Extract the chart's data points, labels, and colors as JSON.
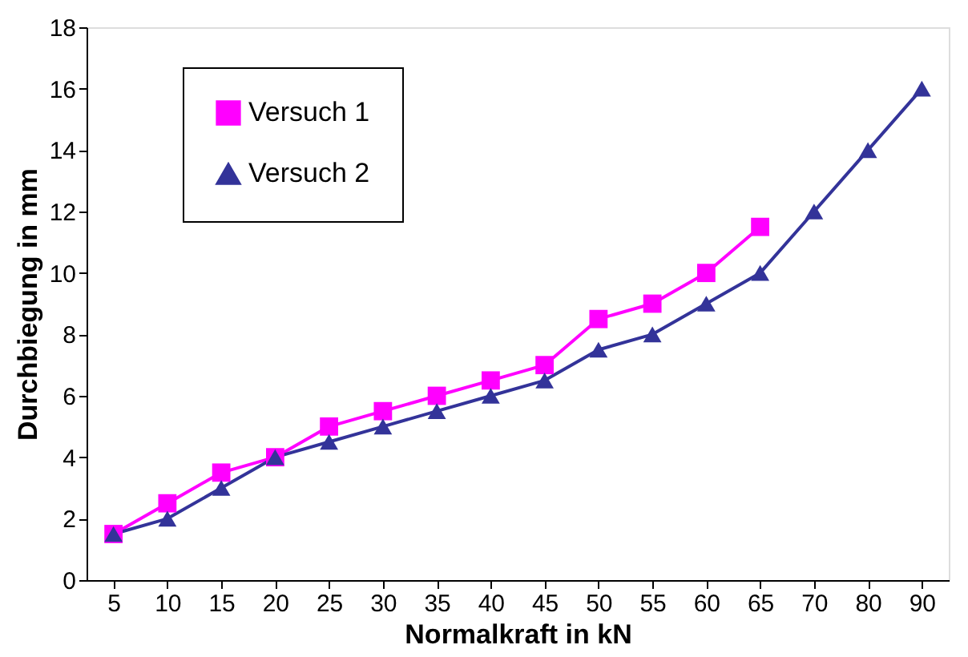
{
  "chart_data": {
    "type": "line",
    "xlabel": "Normalkraft in kN",
    "ylabel": "Durchbiegung in mm",
    "categories": [
      "5",
      "10",
      "15",
      "20",
      "25",
      "30",
      "35",
      "40",
      "45",
      "50",
      "55",
      "60",
      "65",
      "70",
      "80",
      "90"
    ],
    "ylim": [
      0,
      18
    ],
    "yticks": [
      0,
      2,
      4,
      6,
      8,
      10,
      12,
      14,
      16,
      18
    ],
    "grid": false,
    "legend": "top left",
    "series": [
      {
        "name": "Versuch 1",
        "color": "#ff00ff",
        "marker": "square",
        "values": [
          1.5,
          2.5,
          3.5,
          4,
          5,
          5.5,
          6,
          6.5,
          7,
          8.5,
          9,
          10,
          11.5,
          null,
          null,
          null
        ]
      },
      {
        "name": "Versuch 2",
        "color": "#333399",
        "marker": "triangle",
        "values": [
          1.5,
          2,
          3,
          4,
          4.5,
          5,
          5.5,
          6,
          6.5,
          7.5,
          8,
          9,
          10,
          12,
          14,
          16
        ]
      }
    ]
  }
}
